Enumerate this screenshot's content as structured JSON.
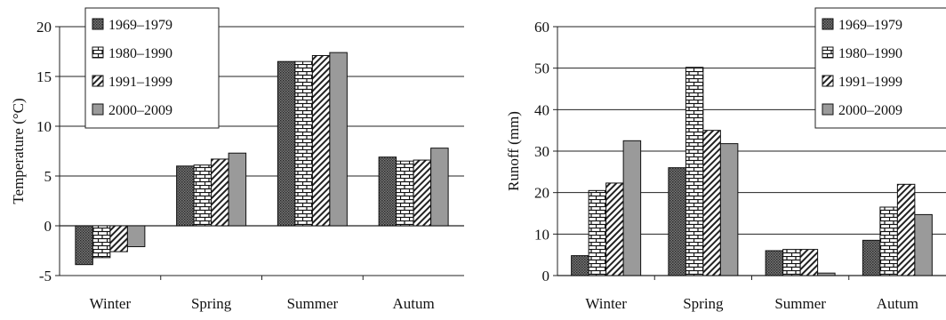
{
  "chart_data": [
    {
      "type": "bar",
      "categories": [
        "Winter",
        "Spring",
        "Summer",
        "Autum"
      ],
      "series": [
        {
          "name": "1969–1979",
          "values": [
            -3.9,
            6.0,
            16.5,
            6.9
          ]
        },
        {
          "name": "1980–1990",
          "values": [
            -3.2,
            6.1,
            16.5,
            6.5
          ]
        },
        {
          "name": "1991–1999",
          "values": [
            -2.6,
            6.7,
            17.1,
            6.6
          ]
        },
        {
          "name": "2000–2009",
          "values": [
            -2.1,
            7.3,
            17.4,
            7.8
          ]
        }
      ],
      "ylabel": "Temperature (°C)",
      "ylim": [
        -5,
        20
      ],
      "yticks": [
        -5,
        0,
        5,
        10,
        15,
        20
      ],
      "grid": true,
      "legend": "top-left"
    },
    {
      "type": "bar",
      "categories": [
        "Winter",
        "Spring",
        "Summer",
        "Autum"
      ],
      "series": [
        {
          "name": "1969–1979",
          "values": [
            4.8,
            26.0,
            6.0,
            8.5
          ]
        },
        {
          "name": "1980–1990",
          "values": [
            20.5,
            50.2,
            6.3,
            16.5
          ]
        },
        {
          "name": "1991–1999",
          "values": [
            22.3,
            35.0,
            6.3,
            22.0
          ]
        },
        {
          "name": "2000–2009",
          "values": [
            32.5,
            31.8,
            0.6,
            14.7
          ]
        }
      ],
      "ylabel": "Runoff (mm)",
      "ylim": [
        0,
        60
      ],
      "yticks": [
        0,
        10,
        20,
        30,
        40,
        50,
        60
      ],
      "grid": true,
      "legend": "top-right"
    }
  ],
  "series_styles": [
    {
      "pattern": "dense-dots",
      "color": "#5a5a5a"
    },
    {
      "pattern": "bricks",
      "color": "#ffffff"
    },
    {
      "pattern": "diagonal-stripes",
      "color": "#ffffff"
    },
    {
      "pattern": "solid",
      "color": "#9a9a9a"
    }
  ]
}
